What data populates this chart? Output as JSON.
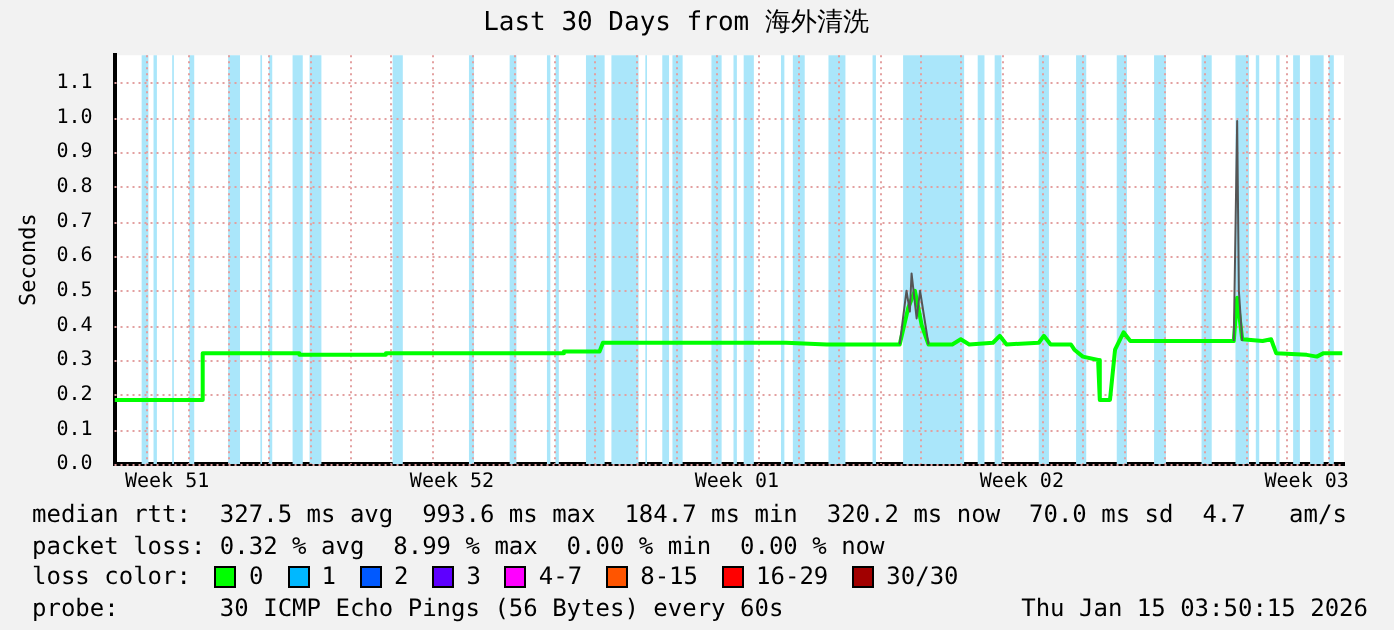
{
  "chart_data": {
    "type": "line",
    "title": "Last 30 Days from 海外清洗",
    "ylabel": "Seconds",
    "legend_title": "loss color:",
    "legend": "bottom",
    "grid": true,
    "marker": "none",
    "line_style": "solid",
    "xlim": [
      "2025-12-16T05:00",
      "2026-01-15T10:00"
    ],
    "xticks": [
      {
        "value": "2025-12-17",
        "label": null
      },
      {
        "value": "2025-12-17T12:00",
        "label": "Week 51"
      },
      {
        "value": "2025-12-18",
        "label": null
      },
      {
        "value": "2025-12-19",
        "label": null
      },
      {
        "value": "2025-12-20",
        "label": null
      },
      {
        "value": "2025-12-21",
        "label": null
      },
      {
        "value": "2025-12-22",
        "label": null
      },
      {
        "value": "2025-12-23",
        "label": null
      },
      {
        "value": "2025-12-24",
        "label": null
      },
      {
        "value": "2025-12-24T12:00",
        "label": "Week 52"
      },
      {
        "value": "2025-12-25",
        "label": null
      },
      {
        "value": "2025-12-26",
        "label": null
      },
      {
        "value": "2025-12-27",
        "label": null
      },
      {
        "value": "2025-12-28",
        "label": null
      },
      {
        "value": "2025-12-29",
        "label": null
      },
      {
        "value": "2025-12-30",
        "label": null
      },
      {
        "value": "2025-12-31",
        "label": null
      },
      {
        "value": "2025-12-31T12:00",
        "label": "Week 01"
      },
      {
        "value": "2026-01-01",
        "label": null
      },
      {
        "value": "2026-01-02",
        "label": null
      },
      {
        "value": "2026-01-03",
        "label": null
      },
      {
        "value": "2026-01-04",
        "label": null
      },
      {
        "value": "2026-01-05",
        "label": null
      },
      {
        "value": "2026-01-06",
        "label": null
      },
      {
        "value": "2026-01-07",
        "label": null
      },
      {
        "value": "2026-01-07T12:00",
        "label": "Week 02"
      },
      {
        "value": "2026-01-08",
        "label": null
      },
      {
        "value": "2026-01-09",
        "label": null
      },
      {
        "value": "2026-01-10",
        "label": null
      },
      {
        "value": "2026-01-11",
        "label": null
      },
      {
        "value": "2026-01-12",
        "label": null
      },
      {
        "value": "2026-01-13",
        "label": null
      },
      {
        "value": "2026-01-14",
        "label": null
      },
      {
        "value": "2026-01-14T12:00",
        "label": "Week 03"
      },
      {
        "value": "2026-01-15",
        "label": null
      }
    ],
    "ylim": [
      0,
      1.18
    ],
    "yticks": [
      {
        "value": 0,
        "label": "0.0"
      },
      {
        "value": 0.1,
        "label": "0.1"
      },
      {
        "value": 0.2,
        "label": "0.2"
      },
      {
        "value": 0.3,
        "label": "0.3"
      },
      {
        "value": 0.4,
        "label": "0.4"
      },
      {
        "value": 0.5,
        "label": "0.5"
      },
      {
        "value": 0.6,
        "label": "0.6"
      },
      {
        "value": 0.7,
        "label": "0.7"
      },
      {
        "value": 0.8,
        "label": "0.8"
      },
      {
        "value": 0.9,
        "label": "0.9"
      },
      {
        "value": 1,
        "label": "1.0"
      },
      {
        "value": 1.1,
        "label": "1.1"
      }
    ],
    "bands": [
      {
        "axis": "x",
        "from": "2025-12-16T21:00",
        "to": "2025-12-17T01:00",
        "color": "#aae6fa"
      },
      {
        "axis": "x",
        "from": "2025-12-17T04:00",
        "to": "2025-12-17T06:00",
        "color": "#aae6fa"
      },
      {
        "axis": "x",
        "from": "2025-12-17T15:00",
        "to": "2025-12-17T16:00",
        "color": "#aae6fa"
      },
      {
        "axis": "x",
        "from": "2025-12-18T01:00",
        "to": "2025-12-18T04:00",
        "color": "#aae6fa"
      },
      {
        "axis": "x",
        "from": "2025-12-19T00:00",
        "to": "2025-12-19T07:00",
        "color": "#aae6fa"
      },
      {
        "axis": "x",
        "from": "2025-12-19T19:00",
        "to": "2025-12-19T20:00",
        "color": "#aae6fa"
      },
      {
        "axis": "x",
        "from": "2025-12-20T00:00",
        "to": "2025-12-20T02:00",
        "color": "#aae6fa"
      },
      {
        "axis": "x",
        "from": "2025-12-20T14:00",
        "to": "2025-12-20T20:00",
        "color": "#aae6fa"
      },
      {
        "axis": "x",
        "from": "2025-12-21T00:00",
        "to": "2025-12-21T07:00",
        "color": "#aae6fa"
      },
      {
        "axis": "x",
        "from": "2025-12-23T01:00",
        "to": "2025-12-23T07:00",
        "color": "#aae6fa"
      },
      {
        "axis": "x",
        "from": "2025-12-24T22:00",
        "to": "2025-12-25T01:00",
        "color": "#aae6fa"
      },
      {
        "axis": "x",
        "from": "2025-12-25T22:00",
        "to": "2025-12-26T02:00",
        "color": "#aae6fa"
      },
      {
        "axis": "x",
        "from": "2025-12-26T20:00",
        "to": "2025-12-26T22:00",
        "color": "#aae6fa"
      },
      {
        "axis": "x",
        "from": "2025-12-27T01:00",
        "to": "2025-12-27T03:00",
        "color": "#aae6fa"
      },
      {
        "axis": "x",
        "from": "2025-12-27T19:00",
        "to": "2025-12-28T06:00",
        "color": "#aae6fa"
      },
      {
        "axis": "x",
        "from": "2025-12-28T10:00",
        "to": "2025-12-29T02:00",
        "color": "#aae6fa"
      },
      {
        "axis": "x",
        "from": "2025-12-29T06:00",
        "to": "2025-12-29T07:00",
        "color": "#aae6fa"
      },
      {
        "axis": "x",
        "from": "2025-12-29T16:00",
        "to": "2025-12-29T20:00",
        "color": "#aae6fa"
      },
      {
        "axis": "x",
        "from": "2025-12-29T22:00",
        "to": "2025-12-30T04:00",
        "color": "#aae6fa"
      },
      {
        "axis": "x",
        "from": "2025-12-30T21:00",
        "to": "2025-12-31T03:00",
        "color": "#aae6fa"
      },
      {
        "axis": "x",
        "from": "2025-12-31T10:00",
        "to": "2025-12-31T12:00",
        "color": "#aae6fa"
      },
      {
        "axis": "x",
        "from": "2025-12-31T16:00",
        "to": "2025-12-31T22:00",
        "color": "#aae6fa"
      },
      {
        "axis": "x",
        "from": "2026-01-01T14:00",
        "to": "2026-01-01T16:00",
        "color": "#aae6fa"
      },
      {
        "axis": "x",
        "from": "2026-01-01T21:00",
        "to": "2026-01-02T04:00",
        "color": "#aae6fa"
      },
      {
        "axis": "x",
        "from": "2026-01-02T18:00",
        "to": "2026-01-03T04:00",
        "color": "#aae6fa"
      },
      {
        "axis": "x",
        "from": "2026-01-03T20:00",
        "to": "2026-01-03T22:00",
        "color": "#aae6fa"
      },
      {
        "axis": "x",
        "from": "2026-01-04T14:00",
        "to": "2026-01-06T02:00",
        "color": "#aae6fa"
      },
      {
        "axis": "x",
        "from": "2026-01-06T10:00",
        "to": "2026-01-06T14:00",
        "color": "#aae6fa"
      },
      {
        "axis": "x",
        "from": "2026-01-06T20:00",
        "to": "2026-01-07T00:00",
        "color": "#aae6fa"
      },
      {
        "axis": "x",
        "from": "2026-01-07T22:00",
        "to": "2026-01-08T04:00",
        "color": "#aae6fa"
      },
      {
        "axis": "x",
        "from": "2026-01-08T20:00",
        "to": "2026-01-09T02:00",
        "color": "#aae6fa"
      },
      {
        "axis": "x",
        "from": "2026-01-09T20:00",
        "to": "2026-01-10T02:00",
        "color": "#aae6fa"
      },
      {
        "axis": "x",
        "from": "2026-01-10T18:00",
        "to": "2026-01-11T01:00",
        "color": "#aae6fa"
      },
      {
        "axis": "x",
        "from": "2026-01-11T22:00",
        "to": "2026-01-12T04:00",
        "color": "#aae6fa"
      },
      {
        "axis": "x",
        "from": "2026-01-12T18:00",
        "to": "2026-01-13T02:00",
        "color": "#aae6fa"
      },
      {
        "axis": "x",
        "from": "2026-01-13T06:00",
        "to": "2026-01-13T08:00",
        "color": "#aae6fa"
      },
      {
        "axis": "x",
        "from": "2026-01-13T18:00",
        "to": "2026-01-13T20:00",
        "color": "#aae6fa"
      },
      {
        "axis": "x",
        "from": "2026-01-14T04:00",
        "to": "2026-01-14T08:00",
        "color": "#aae6fa"
      },
      {
        "axis": "x",
        "from": "2026-01-14T14:00",
        "to": "2026-01-14T22:00",
        "color": "#aae6fa"
      },
      {
        "axis": "x",
        "from": "2026-01-15T01:00",
        "to": "2026-01-15T04:00",
        "color": "#aae6fa"
      }
    ],
    "series": [
      {
        "color": "#555555",
        "x": [
          "2026-01-04T12:00",
          "2026-01-04T16:00",
          "2026-01-04T18:00",
          "2026-01-04T19:00",
          "2026-01-04T22:00",
          "2026-01-05T00:00",
          "2026-01-05T05:00",
          "2026-01-11T05:00",
          "2026-01-12T17:00",
          "2026-01-12T19:00",
          "2026-01-12T20:00",
          "2026-01-12T22:00"
        ],
        "values": [
          0.345,
          0.5,
          0.44,
          0.55,
          0.42,
          0.5,
          0.345,
          null,
          0.355,
          0.99,
          0.5,
          0.355
        ]
      },
      {
        "name": "0",
        "color": "#00ff00",
        "x": [
          "2025-12-16T05:00",
          "2025-12-18T09:00",
          "2025-12-18T09:00",
          "2025-12-20T18:00",
          "2025-12-20T18:00",
          "2025-12-22T21:00",
          "2025-12-22T21:00",
          "2025-12-27T06:00",
          "2025-12-27T06:00",
          "2025-12-28T03:00",
          "2025-12-28T05:00",
          "2025-12-31T17:00",
          "2026-01-01T17:00",
          "2026-01-02T17:00",
          "2026-01-03T17:00",
          "2026-01-04T12:00",
          "2026-01-04T17:00",
          "2026-01-04T21:00",
          "2026-01-05T01:00",
          "2026-01-05T05:00",
          "2026-01-05T19:00",
          "2026-01-06T00:00",
          "2026-01-06T05:00",
          "2026-01-06T19:00",
          "2026-01-06T23:00",
          "2026-01-07T03:00",
          "2026-01-07T22:00",
          "2026-01-08T01:00",
          "2026-01-08T05:00",
          "2026-01-08T17:00",
          "2026-01-08T19:00",
          "2026-01-09T00:00",
          "2026-01-09T09:00",
          "2026-01-09T10:00",
          "2026-01-09T16:00",
          "2026-01-09T19:00",
          "2026-01-10T00:00",
          "2026-01-10T04:00",
          "2026-01-11T17:00",
          "2026-01-12T17:00",
          "2026-01-12T19:00",
          "2026-01-12T22:00",
          "2026-01-13T10:00",
          "2026-01-13T15:00",
          "2026-01-13T18:00",
          "2026-01-14T12:00",
          "2026-01-14T18:00",
          "2026-01-14T22:00",
          "2026-01-15T09:00"
        ],
        "values": [
          0.185,
          0.185,
          0.32,
          0.32,
          0.315,
          0.315,
          0.32,
          0.32,
          0.325,
          0.325,
          0.35,
          0.35,
          0.35,
          0.345,
          0.345,
          0.345,
          0.45,
          0.5,
          0.4,
          0.345,
          0.345,
          0.36,
          0.345,
          0.35,
          0.37,
          0.345,
          0.35,
          0.37,
          0.345,
          0.345,
          0.33,
          0.31,
          0.3,
          0.185,
          0.185,
          0.33,
          0.38,
          0.355,
          0.355,
          0.355,
          0.48,
          0.36,
          0.355,
          0.36,
          0.32,
          0.315,
          0.31,
          0.32,
          0.32
        ]
      },
      {
        "name": "1",
        "color": "#00b8ff"
      },
      {
        "name": "2",
        "color": "#0059ff"
      },
      {
        "name": "3",
        "color": "#5e00ff"
      },
      {
        "name": "4-7",
        "color": "#ff00ff"
      },
      {
        "name": "8-15",
        "color": "#ff5500"
      },
      {
        "name": "16-29",
        "color": "#ff0000"
      },
      {
        "name": "30/30",
        "color": "#a10000"
      }
    ],
    "annotations": [
      "median rtt:  327.5 ms avg  993.6 ms max  184.7 ms min  320.2 ms now  70.0 ms sd  4.7   am/s",
      "packet loss: 0.32 % avg  8.99 % max  0.00 % min  0.00 % now",
      "probe:       30 ICMP Echo Pings (56 Bytes) every 60s",
      "Thu Jan 15 03:50:15 2026"
    ]
  }
}
